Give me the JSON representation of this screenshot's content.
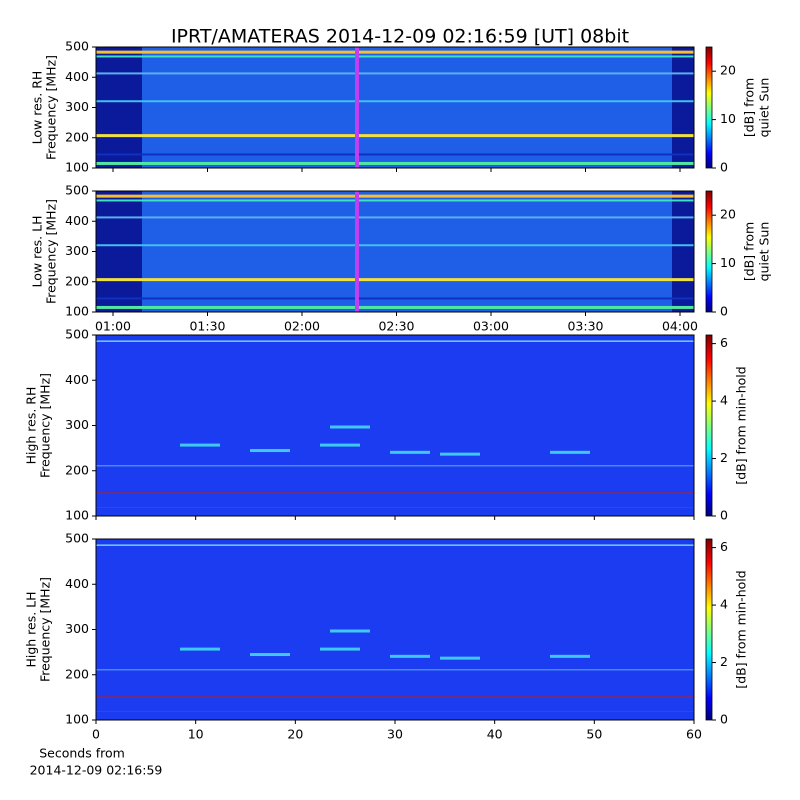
{
  "title": "IPRT/AMATERAS 2014-12-09 02:16:59 [UT]   08bit",
  "chart_data": [
    {
      "type": "spectrogram",
      "ylabel": [
        "Low res. RH",
        "Frequency [MHz]"
      ],
      "ylim": [
        100,
        500
      ],
      "yticks": [
        100,
        200,
        300,
        400,
        500
      ],
      "colormap": "jet",
      "clim": [
        0,
        25
      ],
      "cticks": [
        0,
        10,
        20
      ],
      "clabel": [
        "[dB] from",
        "quiet Sun"
      ]
    },
    {
      "type": "spectrogram",
      "ylabel": [
        "Low res. LH",
        "Frequency [MHz]"
      ],
      "ylim": [
        100,
        500
      ],
      "yticks": [
        100,
        200,
        300,
        400,
        500
      ],
      "xticks": [
        "01:00",
        "01:30",
        "02:00",
        "02:30",
        "03:00",
        "03:30",
        "04:00"
      ],
      "colormap": "jet",
      "clim": [
        0,
        25
      ],
      "cticks": [
        0,
        10,
        20
      ],
      "clabel": [
        "[dB] from",
        "quiet Sun"
      ]
    },
    {
      "type": "spectrogram",
      "ylabel": [
        "High res. RH",
        "Frequency [MHz]"
      ],
      "ylim": [
        100,
        500
      ],
      "yticks": [
        100,
        200,
        300,
        400,
        500
      ],
      "xlim": [
        0,
        60
      ],
      "colormap": "jet",
      "clim": [
        0,
        6.3
      ],
      "cticks": [
        0,
        2,
        4,
        6
      ],
      "clabel": [
        "[dB] from min-hold"
      ]
    },
    {
      "type": "spectrogram",
      "ylabel": [
        "High res. LH",
        "Frequency [MHz]"
      ],
      "ylim": [
        100,
        500
      ],
      "yticks": [
        100,
        200,
        300,
        400,
        500
      ],
      "xlim": [
        0,
        60
      ],
      "xticks": [
        0,
        10,
        20,
        30,
        40,
        50,
        60
      ],
      "xlabel": [
        "Seconds from",
        "2014-12-09 02:16:59"
      ],
      "colormap": "jet",
      "clim": [
        0,
        6.3
      ],
      "cticks": [
        0,
        2,
        4,
        6
      ],
      "clabel": [
        "[dB] from min-hold"
      ]
    }
  ]
}
